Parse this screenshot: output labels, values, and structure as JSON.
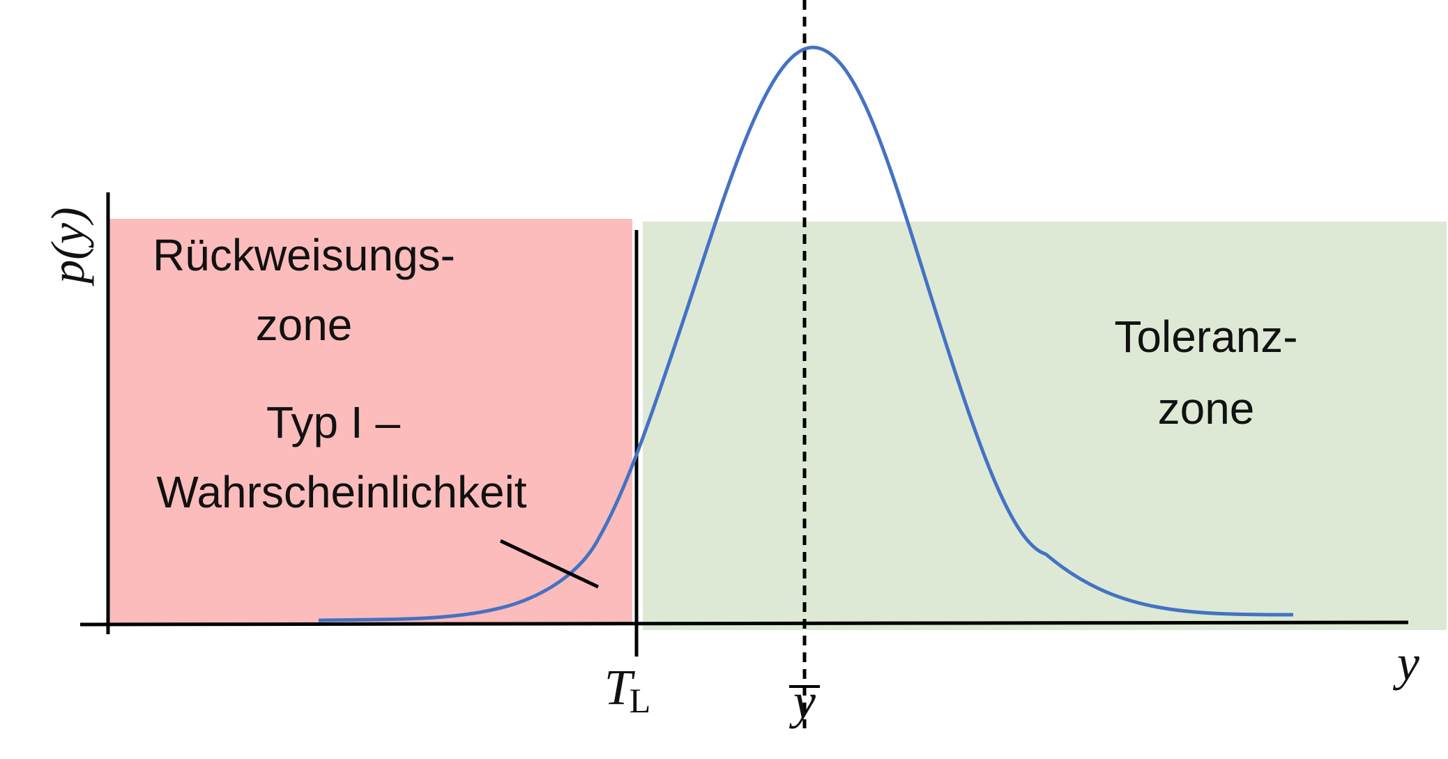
{
  "colors": {
    "rejection_zone": "#fbbcbb",
    "tolerance_zone": "#dde9d4",
    "curve": "#4472c4",
    "axis": "#000000"
  },
  "axis": {
    "y_label": "p(y)",
    "x_label": "y"
  },
  "zones": {
    "rejection": {
      "line1": "Rückweisungs-",
      "line2": "zone"
    },
    "tolerance": {
      "line1": "Toleranz-",
      "line2": "zone"
    }
  },
  "annotation": {
    "line1": "Typ I –",
    "line2": "Wahrscheinlichkeit"
  },
  "ticks": {
    "threshold": {
      "main": "T",
      "sub": "L"
    },
    "mean": {
      "main": "y"
    }
  }
}
